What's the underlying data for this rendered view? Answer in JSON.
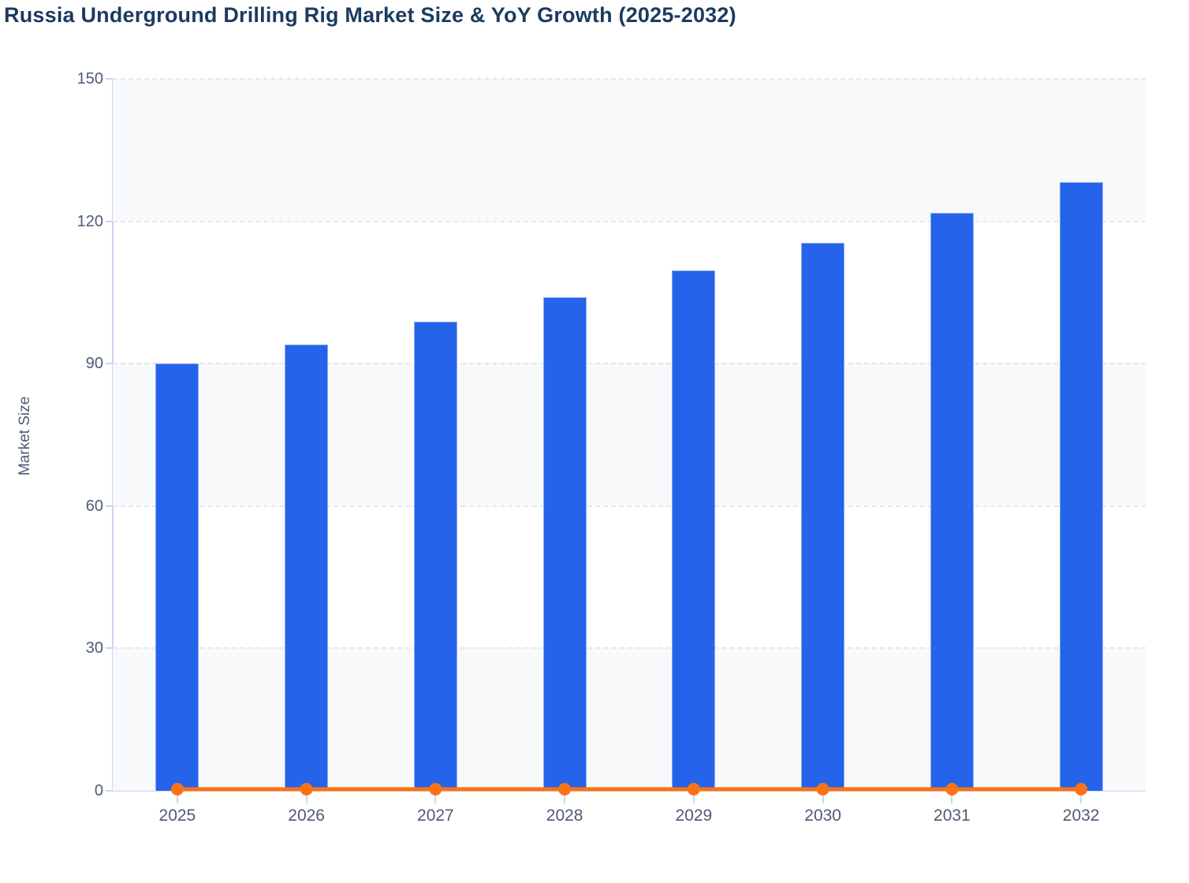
{
  "title": "Russia Underground Drilling Rig Market Size & YoY Growth (2025-2032)",
  "colors": {
    "title_text": "#1b3b5f",
    "axis_text": "#4d5b75",
    "axis_line": "#ccd5f0",
    "gridline": "#e5e7eb",
    "band_fill": "#f8f9fb",
    "bar_fill": "#2563eb",
    "bar_border": "#8aadf0",
    "growth_line": "#f97316",
    "page_background": "#ffffff"
  },
  "chart_data": {
    "type": "bar",
    "title": "Russia Underground Drilling Rig Market Size & YoY Growth (2025-2032)",
    "categories": [
      "2025",
      "2026",
      "2027",
      "2028",
      "2029",
      "2030",
      "2031",
      "2032"
    ],
    "series": [
      {
        "name": "Market Size",
        "type": "bar",
        "color": "#2563eb",
        "values": [
          90,
          94.1,
          98.9,
          104,
          109.7,
          115.5,
          121.8,
          128.3
        ]
      },
      {
        "name": "YoY Growth",
        "type": "line",
        "color": "#f97316",
        "values": [
          0,
          0,
          0,
          0,
          0,
          0,
          0,
          0
        ]
      }
    ],
    "xlabel": "",
    "ylabel": "Market Size",
    "ylim": [
      0,
      150
    ],
    "yticks": [
      0,
      30,
      60,
      90,
      120,
      150
    ],
    "grid": "horizontal-dashed",
    "background_bands": "alternating-light",
    "legend": "none"
  }
}
